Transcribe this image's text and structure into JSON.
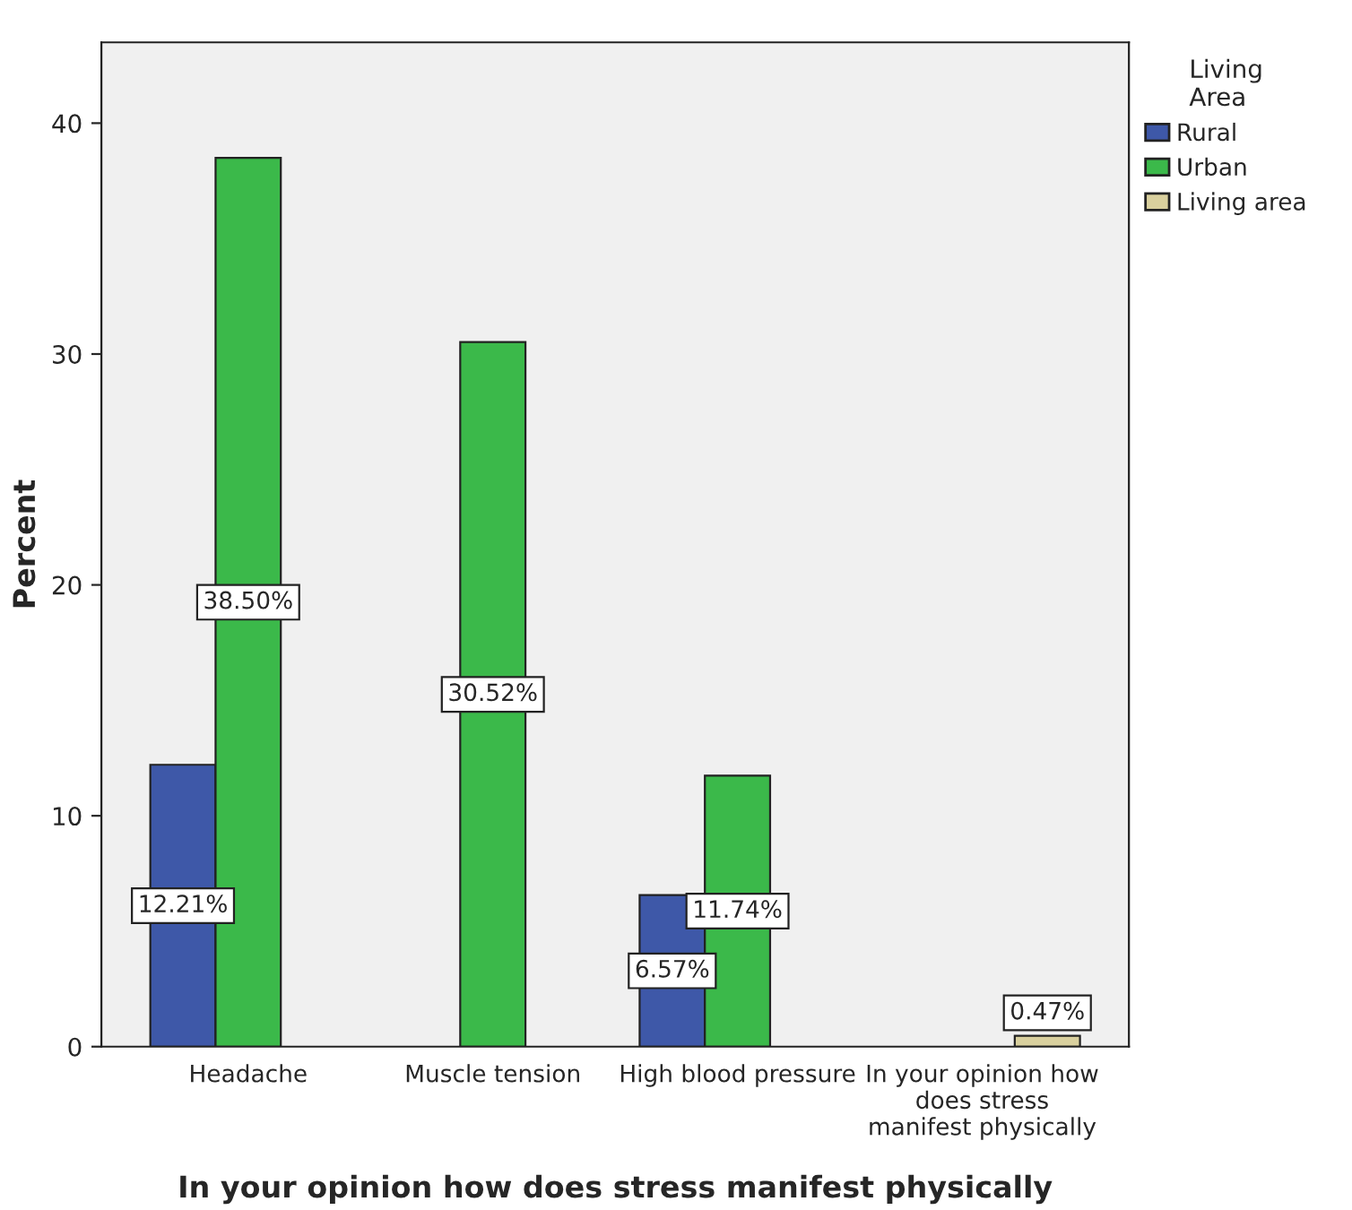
{
  "chart_data": {
    "type": "bar",
    "xlabel": "In your opinion how does stress manifest physically",
    "ylabel": "Percent",
    "legend_title": "Living\nArea",
    "categories": [
      "Headache",
      "Muscle tension",
      "High blood pressure",
      "In your opinion how\ndoes stress\nmanifest physically"
    ],
    "series": [
      {
        "name": "Rural",
        "color": "#3e58a8",
        "values": [
          12.21,
          null,
          6.57,
          null
        ],
        "value_labels": [
          "12.21%",
          null,
          "6.57%",
          null
        ]
      },
      {
        "name": "Urban",
        "color": "#3bb94a",
        "values": [
          38.5,
          30.52,
          11.74,
          null
        ],
        "value_labels": [
          "38.50%",
          "30.52%",
          "11.74%",
          null
        ]
      },
      {
        "name": "Living area",
        "color": "#d9d09e",
        "values": [
          null,
          null,
          null,
          0.47
        ],
        "value_labels": [
          null,
          null,
          null,
          "0.47%"
        ]
      }
    ],
    "ylim": [
      0,
      43.5
    ],
    "yticks": [
      0,
      10,
      20,
      30,
      40
    ],
    "grid": false,
    "legend": "right"
  }
}
